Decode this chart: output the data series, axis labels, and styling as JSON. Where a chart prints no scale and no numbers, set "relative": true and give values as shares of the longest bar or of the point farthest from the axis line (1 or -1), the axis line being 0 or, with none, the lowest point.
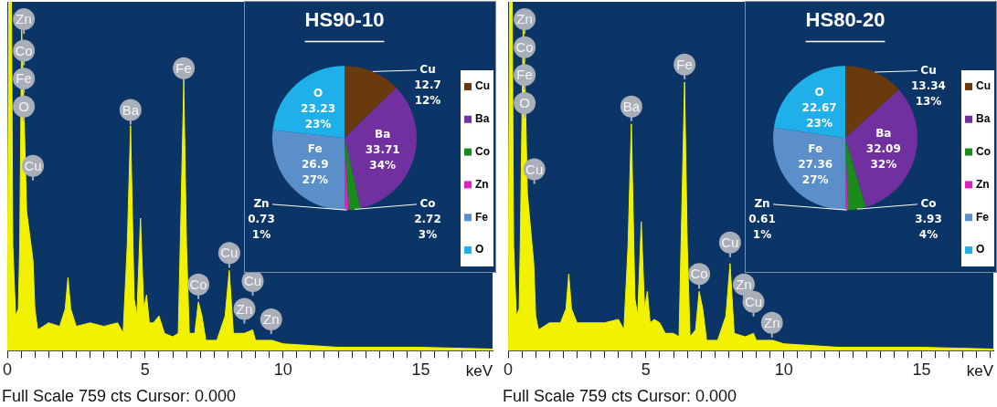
{
  "chart_data": [
    {
      "type": "area",
      "relative": true,
      "color": "#f2f200",
      "xlabel": "keV",
      "xlim": [
        0,
        17.6
      ],
      "xticks": [
        0,
        {
          "value": 0.5,
          "label": null
        },
        {
          "value": 1,
          "label": null
        },
        {
          "value": 1.5,
          "label": null
        },
        {
          "value": 2,
          "label": null
        },
        {
          "value": 2.5,
          "label": null
        },
        {
          "value": 3,
          "label": null
        },
        {
          "value": 3.5,
          "label": null
        },
        {
          "value": 4,
          "label": null
        },
        {
          "value": 4.5,
          "label": null
        },
        5,
        {
          "value": 5.5,
          "label": null
        },
        {
          "value": 6,
          "label": null
        },
        {
          "value": 6.5,
          "label": null
        },
        {
          "value": 7,
          "label": null
        },
        {
          "value": 7.5,
          "label": null
        },
        {
          "value": 8,
          "label": null
        },
        {
          "value": 8.5,
          "label": null
        },
        {
          "value": 9,
          "label": null
        },
        {
          "value": 9.5,
          "label": null
        },
        10,
        {
          "value": 10.5,
          "label": null
        },
        {
          "value": 11,
          "label": null
        },
        {
          "value": 11.5,
          "label": null
        },
        {
          "value": 12,
          "label": null
        },
        {
          "value": 12.5,
          "label": null
        },
        {
          "value": 13,
          "label": null
        },
        {
          "value": 13.5,
          "label": null
        },
        {
          "value": 14,
          "label": null
        },
        {
          "value": 14.5,
          "label": null
        },
        15,
        {
          "value": 15.5,
          "label": null
        },
        {
          "value": 16,
          "label": null
        },
        {
          "value": 16.5,
          "label": null
        },
        {
          "value": 17,
          "label": null
        },
        {
          "value": 17.5,
          "label": null
        }
      ],
      "x": [
        0,
        0.05,
        0.15,
        0.2,
        0.3,
        0.4,
        0.45,
        0.52,
        0.6,
        0.7,
        0.93,
        1.0,
        1.1,
        1.5,
        1.9,
        2.1,
        2.2,
        2.3,
        2.5,
        3.0,
        3.5,
        4.0,
        4.2,
        4.35,
        4.47,
        4.6,
        4.7,
        4.83,
        4.95,
        5.05,
        5.15,
        5.3,
        5.5,
        5.7,
        6.0,
        6.2,
        6.3,
        6.4,
        6.5,
        6.6,
        6.8,
        6.93,
        7.06,
        7.2,
        7.6,
        7.9,
        8.05,
        8.2,
        8.6,
        8.9,
        9.0,
        9.6,
        10,
        12,
        15,
        17.6
      ],
      "values": [
        0,
        1,
        1,
        0.3,
        0.1,
        0.12,
        0.3,
        0.92,
        0.7,
        0.4,
        0.26,
        0.12,
        0.06,
        0.08,
        0.07,
        0.12,
        0.21,
        0.12,
        0.07,
        0.08,
        0.07,
        0.08,
        0.05,
        0.3,
        0.645,
        0.15,
        0.1,
        0.38,
        0.12,
        0.16,
        0.08,
        0.08,
        0.1,
        0.05,
        0.04,
        0.05,
        0.4,
        0.77,
        0.3,
        0.05,
        0.05,
        0.14,
        0.1,
        0.03,
        0.03,
        0.1,
        0.23,
        0.05,
        0.05,
        0.06,
        0.03,
        0.03,
        0.02,
        0.01,
        0.01,
        0.005
      ],
      "annotations": [
        {
          "text": "Zn",
          "x": 0.6,
          "y": 0.95
        },
        {
          "text": "Co",
          "x": 0.6,
          "y": 0.86
        },
        {
          "text": "Fe",
          "x": 0.6,
          "y": 0.78
        },
        {
          "text": "O",
          "x": 0.6,
          "y": 0.7
        },
        {
          "text": "Cu",
          "x": 0.93,
          "y": 0.53
        },
        {
          "text": "Ba",
          "x": 4.47,
          "y": 0.69
        },
        {
          "text": "Fe",
          "x": 6.4,
          "y": 0.81
        },
        {
          "text": "Cu",
          "x": 8.05,
          "y": 0.28
        },
        {
          "text": "Co",
          "x": 6.93,
          "y": 0.19
        },
        {
          "text": "Cu",
          "x": 8.9,
          "y": 0.2
        },
        {
          "text": "Zn",
          "x": 8.6,
          "y": 0.12
        },
        {
          "text": "Zn",
          "x": 9.57,
          "y": 0.09
        },
        "Full Scale 759 cts Cursor: 0.000"
      ]
    },
    {
      "type": "pie",
      "title": "HS90-10",
      "legend": "right",
      "categories": [
        "Cu",
        "Ba",
        "Co",
        "Zn",
        "Fe",
        "O"
      ],
      "values": [
        12.7,
        33.71,
        2.72,
        0.73,
        26.9,
        23.23
      ],
      "colors": [
        "#6b3a0c",
        "#7030a0",
        "#1a8a1a",
        "#e020c0",
        "#5b8fc9",
        "#1fb0ea"
      ],
      "value_labels": [
        "12.7\n12%",
        "33.71\n34%",
        "2.72\n3%",
        "0.73\n1%",
        "26.9\n27%",
        "23.23\n23%"
      ]
    },
    {
      "type": "area",
      "relative": true,
      "color": "#f2f200",
      "xlabel": "keV",
      "xlim": [
        0,
        17.6
      ],
      "xticks": [
        0,
        {
          "value": 0.5,
          "label": null
        },
        {
          "value": 1,
          "label": null
        },
        {
          "value": 1.5,
          "label": null
        },
        {
          "value": 2,
          "label": null
        },
        {
          "value": 2.5,
          "label": null
        },
        {
          "value": 3,
          "label": null
        },
        {
          "value": 3.5,
          "label": null
        },
        {
          "value": 4,
          "label": null
        },
        {
          "value": 4.5,
          "label": null
        },
        5,
        {
          "value": 5.5,
          "label": null
        },
        {
          "value": 6,
          "label": null
        },
        {
          "value": 6.5,
          "label": null
        },
        {
          "value": 7,
          "label": null
        },
        {
          "value": 7.5,
          "label": null
        },
        {
          "value": 8,
          "label": null
        },
        {
          "value": 8.5,
          "label": null
        },
        {
          "value": 9,
          "label": null
        },
        {
          "value": 9.5,
          "label": null
        },
        10,
        {
          "value": 10.5,
          "label": null
        },
        {
          "value": 11,
          "label": null
        },
        {
          "value": 11.5,
          "label": null
        },
        {
          "value": 12,
          "label": null
        },
        {
          "value": 12.5,
          "label": null
        },
        {
          "value": 13,
          "label": null
        },
        {
          "value": 13.5,
          "label": null
        },
        {
          "value": 14,
          "label": null
        },
        {
          "value": 14.5,
          "label": null
        },
        15,
        {
          "value": 15.5,
          "label": null
        },
        {
          "value": 16,
          "label": null
        },
        {
          "value": 16.5,
          "label": null
        },
        {
          "value": 17,
          "label": null
        },
        {
          "value": 17.5,
          "label": null
        }
      ],
      "x": [
        0,
        0.05,
        0.15,
        0.2,
        0.3,
        0.4,
        0.45,
        0.55,
        0.62,
        0.7,
        0.93,
        1.0,
        1.1,
        1.5,
        1.9,
        2.1,
        2.2,
        2.3,
        2.5,
        3.0,
        3.5,
        4.0,
        4.2,
        4.35,
        4.47,
        4.6,
        4.7,
        4.83,
        4.95,
        5.05,
        5.15,
        5.3,
        5.5,
        5.7,
        6.0,
        6.2,
        6.3,
        6.4,
        6.5,
        6.6,
        6.8,
        6.93,
        7.06,
        7.2,
        7.6,
        7.9,
        8.05,
        8.2,
        8.6,
        8.9,
        9.0,
        9.6,
        10,
        12,
        15,
        17.6
      ],
      "values": [
        0,
        1,
        1,
        0.3,
        0.1,
        0.12,
        0.35,
        0.95,
        0.75,
        0.45,
        0.25,
        0.1,
        0.06,
        0.08,
        0.08,
        0.12,
        0.22,
        0.12,
        0.08,
        0.08,
        0.08,
        0.09,
        0.06,
        0.3,
        0.65,
        0.15,
        0.1,
        0.37,
        0.12,
        0.17,
        0.08,
        0.09,
        0.08,
        0.05,
        0.05,
        0.04,
        0.4,
        0.77,
        0.3,
        0.04,
        0.06,
        0.17,
        0.12,
        0.03,
        0.03,
        0.1,
        0.25,
        0.05,
        0.04,
        0.05,
        0.03,
        0.03,
        0.02,
        0.01,
        0.01,
        0.005
      ],
      "annotations": [
        {
          "text": "Zn",
          "x": 0.6,
          "y": 0.95
        },
        {
          "text": "Co",
          "x": 0.6,
          "y": 0.87
        },
        {
          "text": "Fe",
          "x": 0.6,
          "y": 0.79
        },
        {
          "text": "O",
          "x": 0.6,
          "y": 0.71
        },
        {
          "text": "Cu",
          "x": 0.95,
          "y": 0.52
        },
        {
          "text": "Ba",
          "x": 4.47,
          "y": 0.7
        },
        {
          "text": "Fe",
          "x": 6.4,
          "y": 0.82
        },
        {
          "text": "Cu",
          "x": 8.05,
          "y": 0.31
        },
        {
          "text": "Zn",
          "x": 8.55,
          "y": 0.19
        },
        {
          "text": "Co",
          "x": 6.93,
          "y": 0.22
        },
        {
          "text": "Cu",
          "x": 8.9,
          "y": 0.14
        },
        {
          "text": "Zn",
          "x": 9.57,
          "y": 0.08
        },
        "Full Scale 759 cts Cursor: 0.000"
      ]
    },
    {
      "type": "pie",
      "title": "HS80-20",
      "legend": "right",
      "categories": [
        "Cu",
        "Ba",
        "Co",
        "Zn",
        "Fe",
        "O"
      ],
      "values": [
        13.34,
        32.09,
        3.93,
        0.61,
        27.36,
        22.67
      ],
      "colors": [
        "#6b3a0c",
        "#7030a0",
        "#1a8a1a",
        "#e020c0",
        "#5b8fc9",
        "#1fb0ea"
      ],
      "value_labels": [
        "13.34\n13%",
        "32.09\n32%",
        "3.93\n4%",
        "0.61\n1%",
        "27.36\n27%",
        "22.67\n23%"
      ]
    }
  ]
}
